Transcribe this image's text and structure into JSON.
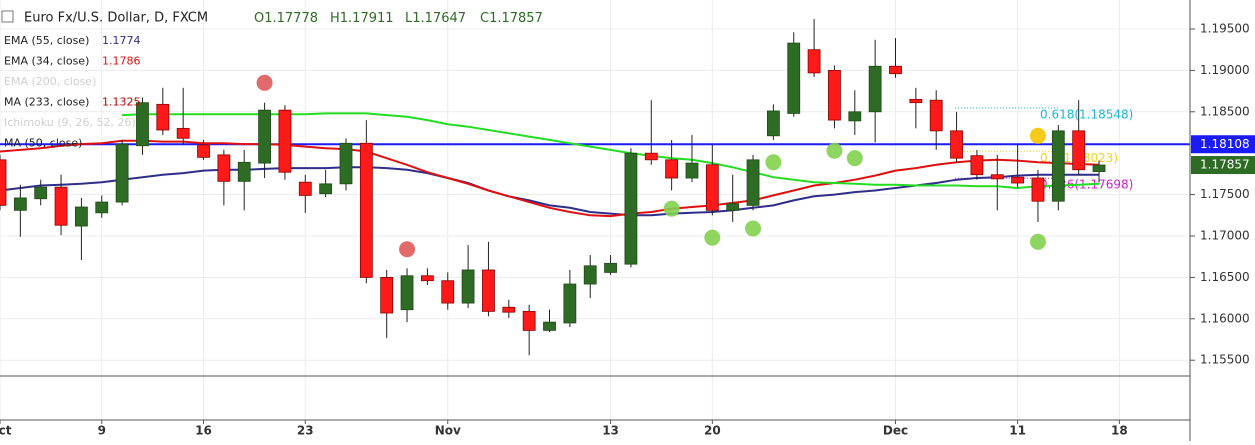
{
  "chart_data": {
    "type": "candlestick",
    "title": "Euro Fx/U.S. Dollar, D, FXCM",
    "ohlc_labels": [
      "O",
      "H",
      "L",
      "C"
    ],
    "open": [
      1.1792,
      1.1731,
      1.1745,
      1.1759,
      1.1712,
      1.1728,
      1.1741,
      1.1809,
      1.1859,
      1.183,
      1.181,
      1.1798,
      1.1766,
      1.1788,
      1.1852,
      1.1765,
      1.1751,
      1.1763,
      1.1812,
      1.165,
      1.1611,
      1.1652,
      1.1646,
      1.1619,
      1.1659,
      1.1614,
      1.1609,
      1.1586,
      1.1595,
      1.1642,
      1.1656,
      1.1666,
      1.18,
      1.1792,
      1.177,
      1.1786,
      1.1731,
      1.1737,
      1.1821,
      1.1848,
      1.1925,
      1.19,
      1.1839,
      1.185,
      1.1905,
      1.1865,
      1.1864,
      1.1827,
      1.1797,
      1.1774,
      1.1771,
      1.177,
      1.1742,
      1.1827,
      1.17778
    ],
    "high": [
      1.1798,
      1.1762,
      1.1768,
      1.1774,
      1.1746,
      1.1749,
      1.1816,
      1.1867,
      1.1879,
      1.1879,
      1.1816,
      1.1804,
      1.1804,
      1.1861,
      1.1858,
      1.1774,
      1.178,
      1.1818,
      1.184,
      1.1659,
      1.1661,
      1.1661,
      1.1656,
      1.1689,
      1.1693,
      1.1623,
      1.1617,
      1.1611,
      1.1659,
      1.1677,
      1.1677,
      1.1806,
      1.1864,
      1.1816,
      1.1822,
      1.181,
      1.1774,
      1.1798,
      1.1859,
      1.1946,
      1.1962,
      1.1906,
      1.1876,
      1.1937,
      1.1939,
      1.1879,
      1.1876,
      1.185,
      1.1804,
      1.1798,
      1.181,
      1.178,
      1.1834,
      1.1864,
      1.17911
    ],
    "low": [
      1.1731,
      1.1699,
      1.1737,
      1.1701,
      1.1671,
      1.1722,
      1.1737,
      1.1798,
      1.1822,
      1.181,
      1.1792,
      1.1737,
      1.1731,
      1.177,
      1.1768,
      1.1728,
      1.1747,
      1.1755,
      1.1643,
      1.1577,
      1.1596,
      1.1641,
      1.1611,
      1.1613,
      1.1603,
      1.1601,
      1.1556,
      1.1584,
      1.159,
      1.1625,
      1.1653,
      1.1662,
      1.1786,
      1.1755,
      1.1765,
      1.1725,
      1.1717,
      1.1731,
      1.1816,
      1.1844,
      1.1892,
      1.183,
      1.1822,
      1.1813,
      1.1891,
      1.183,
      1.1804,
      1.1789,
      1.1768,
      1.1731,
      1.1758,
      1.1717,
      1.1731,
      1.1774,
      1.17647
    ],
    "close": [
      1.1737,
      1.1746,
      1.1759,
      1.1713,
      1.1735,
      1.1741,
      1.1811,
      1.1861,
      1.1828,
      1.1818,
      1.1795,
      1.1766,
      1.1789,
      1.1852,
      1.1777,
      1.1749,
      1.1763,
      1.1812,
      1.165,
      1.1607,
      1.1652,
      1.1646,
      1.1619,
      1.1659,
      1.1609,
      1.1608,
      1.1586,
      1.1596,
      1.1642,
      1.1664,
      1.1667,
      1.18,
      1.1792,
      1.177,
      1.1788,
      1.1731,
      1.1739,
      1.1792,
      1.1851,
      1.1933,
      1.1897,
      1.184,
      1.185,
      1.1905,
      1.1896,
      1.1861,
      1.1827,
      1.1794,
      1.1774,
      1.1769,
      1.1764,
      1.1742,
      1.1827,
      1.178,
      1.17857
    ],
    "up_color": "#2e6b24",
    "down_color": "#ff1a1a",
    "indicators": [
      {
        "name": "EMA (55, close)",
        "color": "#2e2e8a",
        "show_value": true,
        "values": [
          1.1755,
          1.1758,
          1.1761,
          1.1762,
          1.1763,
          1.1765,
          1.1768,
          1.1771,
          1.1774,
          1.1776,
          1.1779,
          1.178,
          1.178,
          1.1781,
          1.1782,
          1.1782,
          1.1782,
          1.1783,
          1.1783,
          1.1782,
          1.178,
          1.1776,
          1.177,
          1.1764,
          1.1755,
          1.1748,
          1.1743,
          1.1737,
          1.1734,
          1.1729,
          1.1727,
          1.1725,
          1.1725,
          1.1727,
          1.1728,
          1.1729,
          1.1731,
          1.1734,
          1.1737,
          1.1743,
          1.1748,
          1.175,
          1.1753,
          1.1755,
          1.1758,
          1.1761,
          1.1764,
          1.1768,
          1.177,
          1.1771,
          1.1773,
          1.1774,
          1.1774,
          1.1774,
          1.1774
        ]
      },
      {
        "name": "EMA (34, close)",
        "color": "#e01010",
        "show_value": true,
        "values": [
          1.1802,
          1.1804,
          1.1806,
          1.1809,
          1.1811,
          1.1812,
          1.1815,
          1.1815,
          1.1814,
          1.1814,
          1.1812,
          1.1812,
          1.1811,
          1.1811,
          1.181,
          1.1808,
          1.1806,
          1.1805,
          1.1802,
          1.1794,
          1.1786,
          1.1777,
          1.177,
          1.1763,
          1.1755,
          1.1748,
          1.1741,
          1.1734,
          1.1729,
          1.1725,
          1.1724,
          1.1727,
          1.1729,
          1.1733,
          1.1735,
          1.1737,
          1.174,
          1.1743,
          1.1749,
          1.1755,
          1.1761,
          1.1764,
          1.1768,
          1.1773,
          1.1779,
          1.1782,
          1.1786,
          1.1789,
          1.1791,
          1.1792,
          1.1791,
          1.1789,
          1.1788,
          1.1787,
          1.1786
        ]
      },
      {
        "name": "EMA (200, close)",
        "color": "#cccccc"
      },
      {
        "name": "MA (233, close)",
        "color": "#c00000",
        "value": 1.1325
      },
      {
        "name": "Ichimoku (9, 26, 52, 26)",
        "color": "#cccccc"
      },
      {
        "name": "MA (50, close)",
        "color": "#22dd22",
        "show_value": false,
        "values": [
          null,
          null,
          null,
          null,
          null,
          null,
          1.1846,
          1.1847,
          1.1847,
          1.1847,
          1.1847,
          1.1847,
          1.1847,
          1.1847,
          1.1847,
          1.1847,
          1.1848,
          1.1848,
          1.1848,
          1.1846,
          1.1844,
          1.184,
          1.1835,
          1.1832,
          1.1828,
          1.1824,
          1.182,
          1.1816,
          1.1812,
          1.1808,
          1.1804,
          1.18,
          1.1797,
          1.1794,
          1.1792,
          1.1788,
          1.1783,
          1.1777,
          1.1771,
          1.1768,
          1.1765,
          1.1764,
          1.1763,
          1.1762,
          1.1762,
          1.1761,
          1.1761,
          1.1761,
          1.176,
          1.176,
          1.1758,
          1.176,
          1.1761,
          1.1762,
          1.1763
        ]
      }
    ],
    "markers": [
      {
        "color": "#82d14f",
        "x": [
          33,
          35,
          37,
          38,
          41,
          42,
          51
        ],
        "y": [
          1.1733,
          1.1698,
          1.1709,
          1.1789,
          1.1803,
          1.1794,
          1.1693
        ]
      },
      {
        "color": "#e05a5a",
        "x": [
          13,
          20
        ],
        "y": [
          1.1885,
          1.1684
        ]
      },
      {
        "color": "#f5c400",
        "x": [
          51
        ],
        "y": [
          1.1821
        ]
      }
    ],
    "fib_levels": [
      {
        "value": 1.18548,
        "label": "0.618(1.18548)",
        "color": "#1cb8d8"
      },
      {
        "value": 1.18023,
        "label": "0.5(1.18023)",
        "color": "#f2d21b"
      },
      {
        "value": 1.17698,
        "label": "0.236(1.17698)",
        "color": "#d21cd2"
      }
    ],
    "hline": {
      "value": 1.18108,
      "color": "#1a1aff"
    },
    "ylim": [
      1.14778,
      1.1985
    ],
    "yticks": [
      {
        "value": 1.155,
        "label": "1.15500"
      },
      {
        "value": 1.16,
        "label": "1.16000"
      },
      {
        "value": 1.165,
        "label": "1.16500"
      },
      {
        "value": 1.17,
        "label": "1.17000"
      },
      {
        "value": 1.175,
        "label": "1.17500"
      },
      {
        "value": 1.185,
        "label": "1.18500"
      },
      {
        "value": 1.19,
        "label": "1.19000"
      },
      {
        "value": 1.195,
        "label": "1.19500"
      }
    ],
    "xlim": [
      0,
      58.47
    ],
    "xticks": [
      {
        "value": 0,
        "label": "Oct"
      },
      {
        "value": 5,
        "label": "9"
      },
      {
        "value": 10,
        "label": "16"
      },
      {
        "value": 15,
        "label": "23"
      },
      {
        "value": 22,
        "label": "Nov"
      },
      {
        "value": 30,
        "label": "13"
      },
      {
        "value": 35,
        "label": "20"
      },
      {
        "value": 44,
        "label": "Dec"
      },
      {
        "value": 50,
        "label": "11"
      },
      {
        "value": 55,
        "label": "18"
      }
    ],
    "grid": true
  }
}
